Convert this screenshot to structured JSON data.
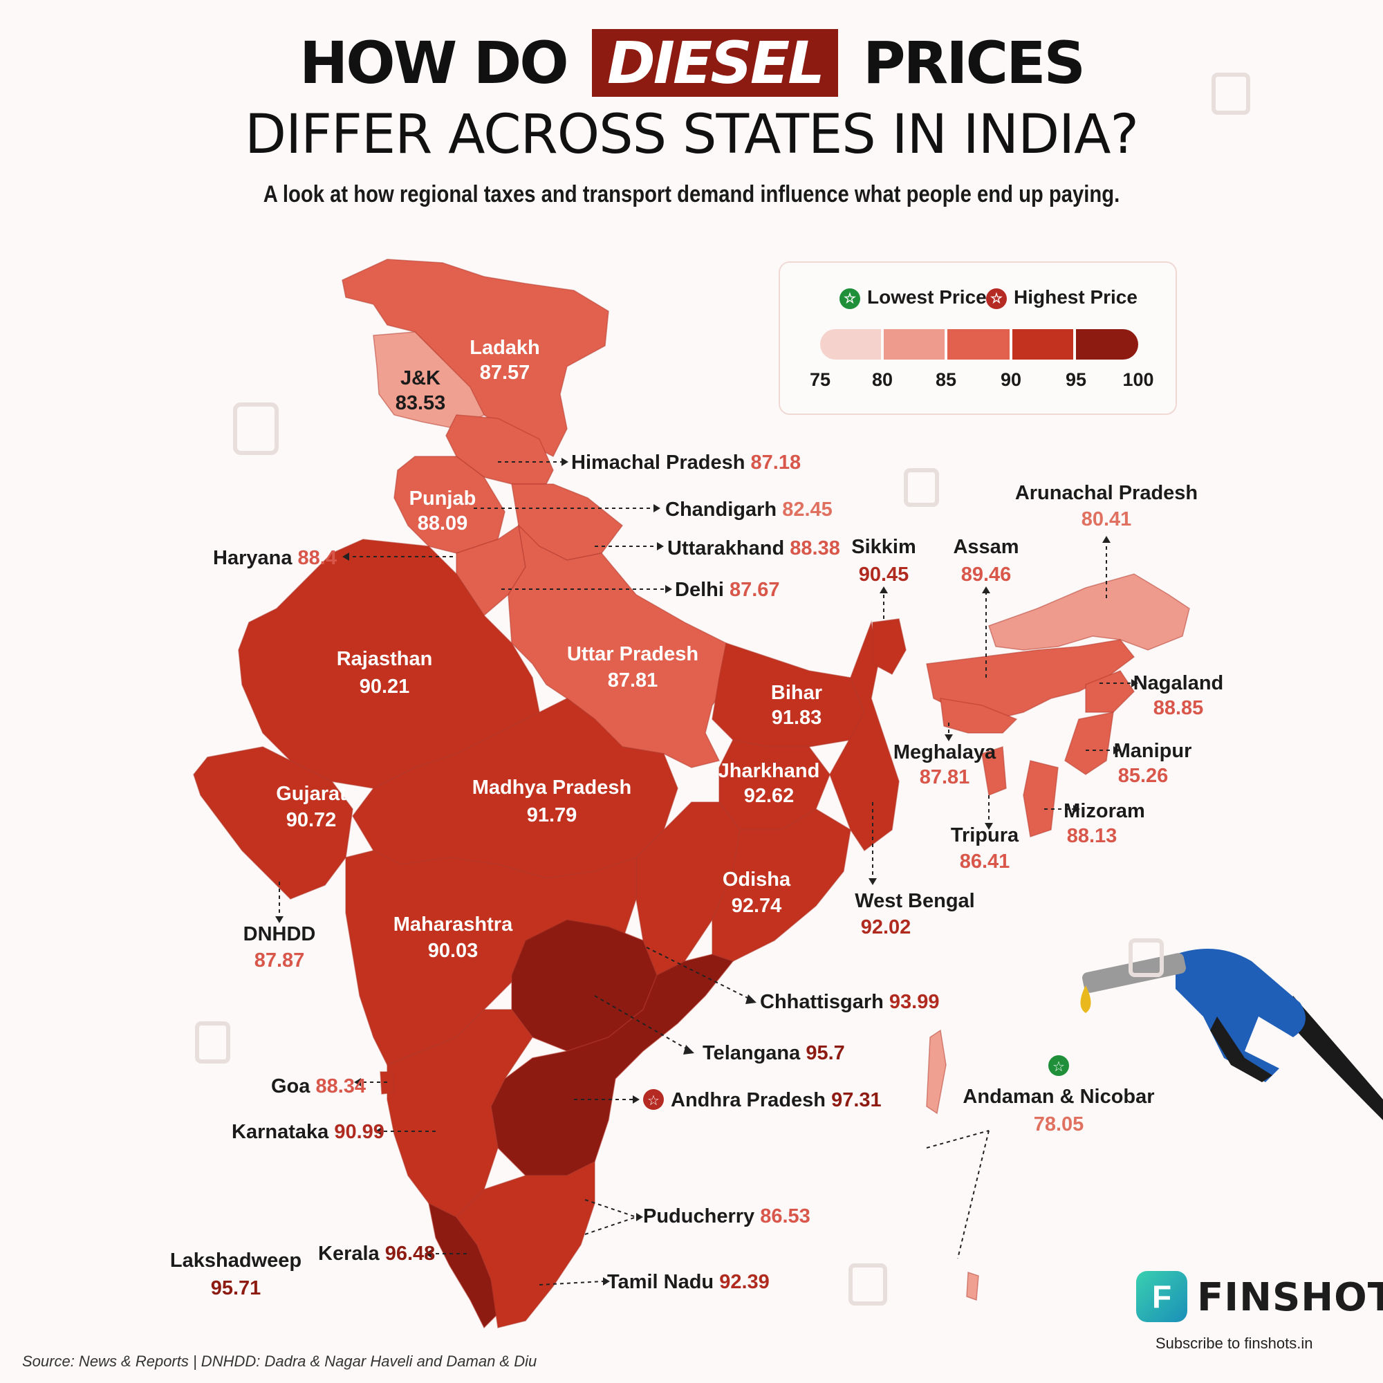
{
  "title": {
    "part1": "HOW DO",
    "highlight": "DIESEL",
    "part2": "PRICES",
    "line2": "DIFFER ACROSS STATES IN INDIA?"
  },
  "subtitle": "A look at how regional taxes and transport demand influence what people end up paying.",
  "legend": {
    "lowest_label": "Lowest Price",
    "highest_label": "Highest Price",
    "ticks": [
      "75",
      "80",
      "85",
      "90",
      "95",
      "100"
    ],
    "colors": [
      "#f6d2cc",
      "#ee9a8c",
      "#e2614e",
      "#c2321f",
      "#8e1b12"
    ]
  },
  "colors": {
    "lowest_badge": "#1f8f3a",
    "highest_badge": "#b52a22"
  },
  "states": [
    {
      "name": "Ladakh",
      "price": "87.57"
    },
    {
      "name": "J&K",
      "price": "83.53"
    },
    {
      "name": "Himachal Pradesh",
      "price": "87.18"
    },
    {
      "name": "Punjab",
      "price": "88.09"
    },
    {
      "name": "Chandigarh",
      "price": "82.45"
    },
    {
      "name": "Uttarakhand",
      "price": "88.38"
    },
    {
      "name": "Haryana",
      "price": "88.4"
    },
    {
      "name": "Delhi",
      "price": "87.67"
    },
    {
      "name": "Rajasthan",
      "price": "90.21"
    },
    {
      "name": "Uttar Pradesh",
      "price": "87.81"
    },
    {
      "name": "Bihar",
      "price": "91.83"
    },
    {
      "name": "Sikkim",
      "price": "90.45"
    },
    {
      "name": "Assam",
      "price": "89.46"
    },
    {
      "name": "Arunachal Pradesh",
      "price": "80.41"
    },
    {
      "name": "Nagaland",
      "price": "88.85"
    },
    {
      "name": "Meghalaya",
      "price": "87.81"
    },
    {
      "name": "Manipur",
      "price": "85.26"
    },
    {
      "name": "Mizoram",
      "price": "88.13"
    },
    {
      "name": "Tripura",
      "price": "86.41"
    },
    {
      "name": "Gujarat",
      "price": "90.72"
    },
    {
      "name": "Madhya Pradesh",
      "price": "91.79"
    },
    {
      "name": "Jharkhand",
      "price": "92.62"
    },
    {
      "name": "Odisha",
      "price": "92.74"
    },
    {
      "name": "West Bengal",
      "price": "92.02"
    },
    {
      "name": "DNHDD",
      "price": "87.87"
    },
    {
      "name": "Maharashtra",
      "price": "90.03"
    },
    {
      "name": "Chhattisgarh",
      "price": "93.99"
    },
    {
      "name": "Telangana",
      "price": "95.7"
    },
    {
      "name": "Goa",
      "price": "88.34"
    },
    {
      "name": "Andhra Pradesh",
      "price": "97.31"
    },
    {
      "name": "Karnataka",
      "price": "90.99"
    },
    {
      "name": "Andaman & Nicobar",
      "price": "78.05"
    },
    {
      "name": "Puducherry",
      "price": "86.53"
    },
    {
      "name": "Kerala",
      "price": "96.48"
    },
    {
      "name": "Lakshadweep",
      "price": "95.71"
    },
    {
      "name": "Tamil Nadu",
      "price": "92.39"
    }
  ],
  "source": "Source: News & Reports | DNHDD: Dadra & Nagar Haveli and Daman & Diu",
  "brand": {
    "name": "FINSHOTS",
    "tagline": "Subscribe to finshots.in"
  }
}
